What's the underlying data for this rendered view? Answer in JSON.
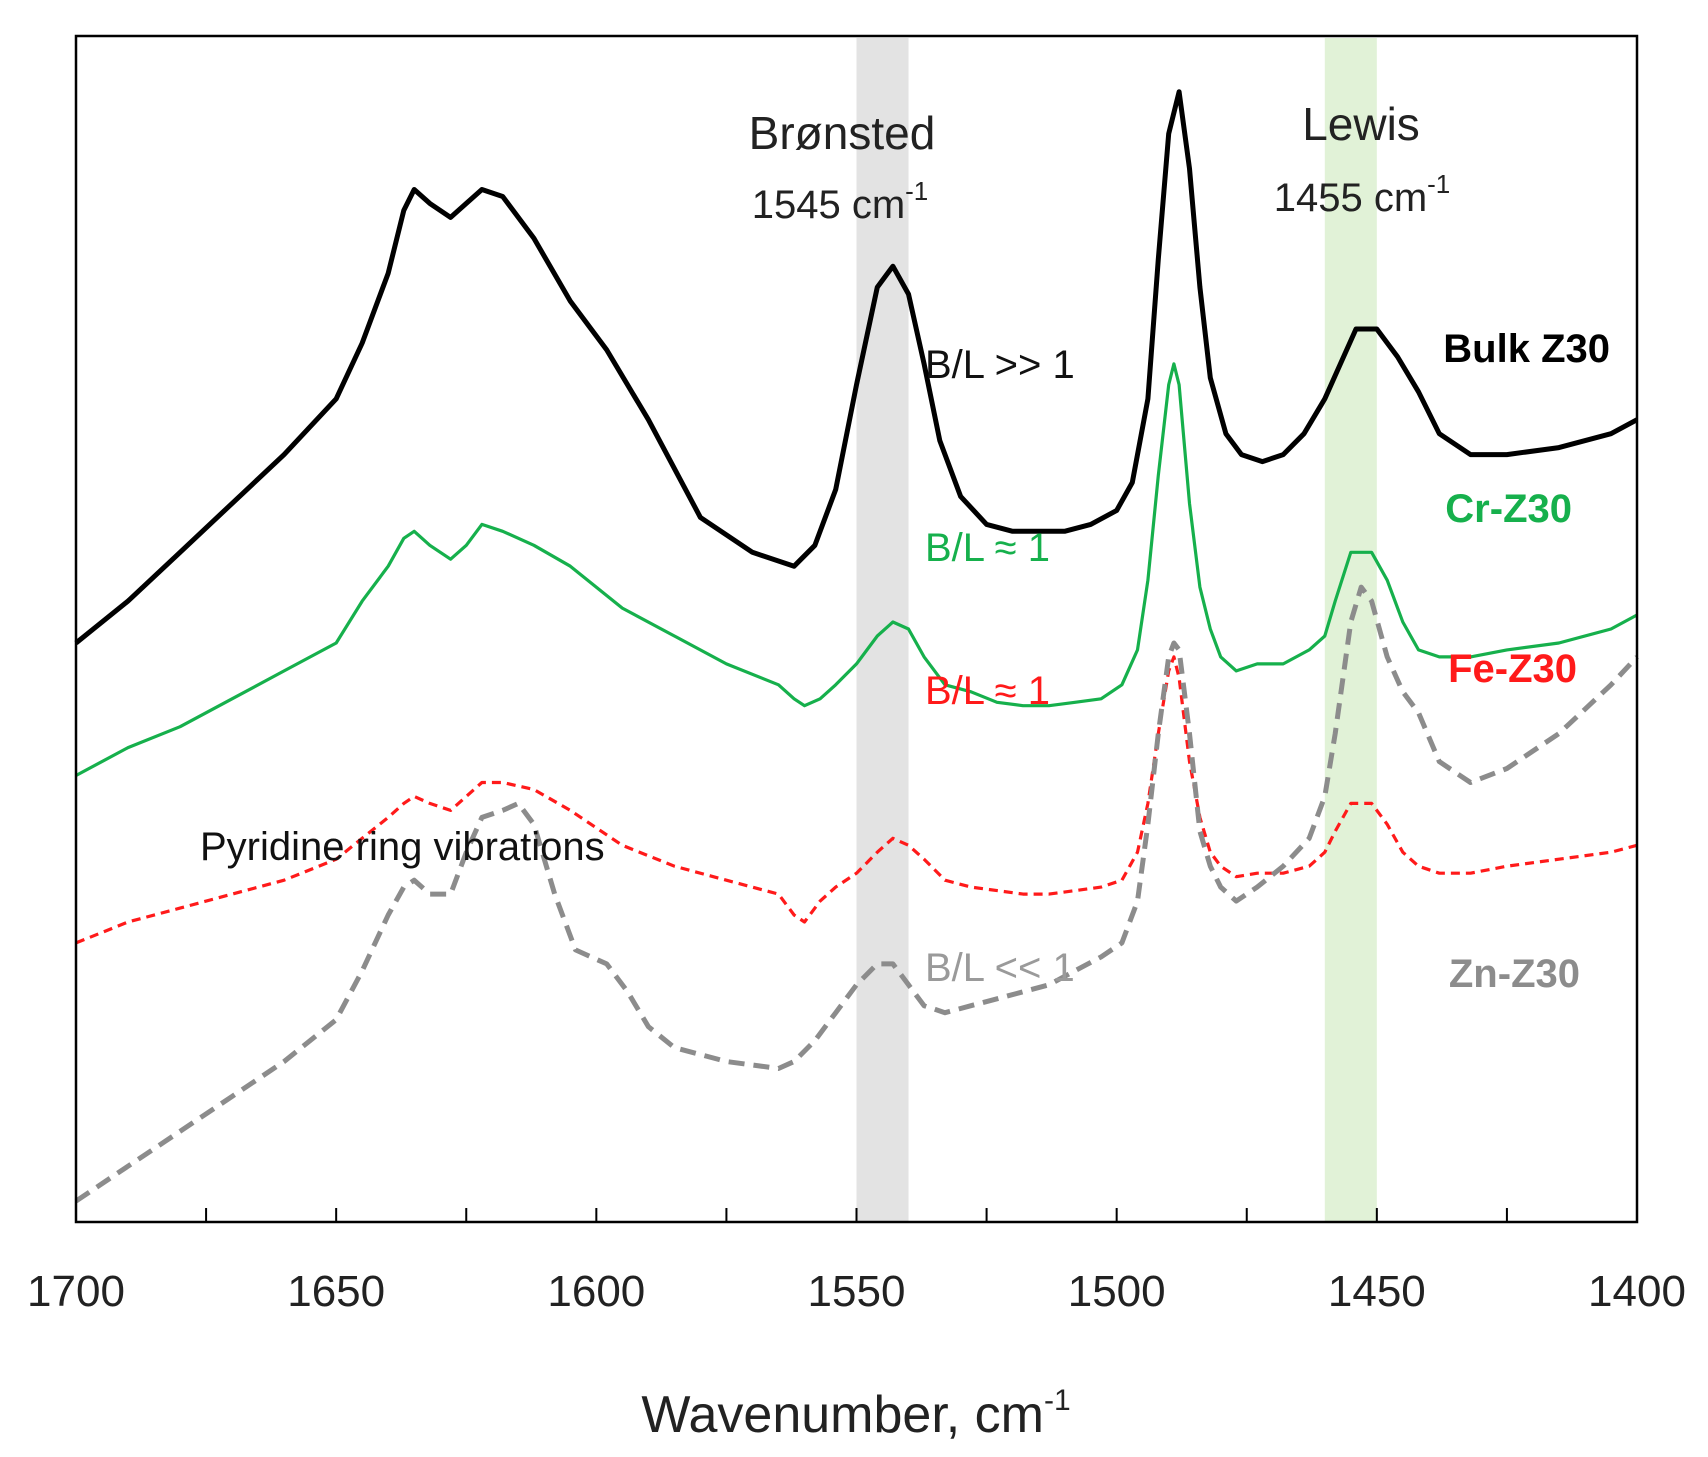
{
  "chart_data": {
    "type": "line",
    "title": "",
    "xlabel": "Wavenumber, cm",
    "xlabel_sup": "-1",
    "ylabel": "",
    "xlim": [
      1700,
      1400
    ],
    "x_reversed": true,
    "grid": false,
    "x_ticks": [
      1700,
      1650,
      1600,
      1550,
      1500,
      1450,
      1400
    ],
    "x_tick_labels": [
      "1700",
      "1650",
      "1600",
      "1550",
      "1500",
      "1450",
      "1400"
    ],
    "bands": [
      {
        "name": "Brønsted",
        "sub": "1545 cm",
        "sup": "-1",
        "from": 1550,
        "to": 1540,
        "color": "#e3e3e3"
      },
      {
        "name": "Lewis",
        "sub": "1455 cm",
        "sup": "-1",
        "from": 1460,
        "to": 1450,
        "color": "#e1f2d7"
      }
    ],
    "series": [
      {
        "name": "Bulk Z30",
        "color": "#000000",
        "style": "solid",
        "ratio_label": "B/L >> 1",
        "ratio_color": "#111111",
        "x": [
          1700,
          1690,
          1680,
          1670,
          1660,
          1650,
          1645,
          1640,
          1637,
          1635,
          1632,
          1628,
          1625,
          1622,
          1618,
          1612,
          1605,
          1598,
          1590,
          1580,
          1570,
          1562,
          1558,
          1554,
          1550,
          1546,
          1543,
          1540,
          1537,
          1534,
          1530,
          1525,
          1520,
          1515,
          1510,
          1505,
          1500,
          1497,
          1494,
          1492,
          1490,
          1488,
          1486,
          1484,
          1482,
          1479,
          1476,
          1472,
          1468,
          1464,
          1460,
          1457,
          1454,
          1450,
          1446,
          1442,
          1438,
          1432,
          1425,
          1415,
          1405,
          1400
        ],
        "y": [
          8.3,
          8.9,
          9.6,
          10.3,
          11.0,
          11.8,
          12.6,
          13.6,
          14.5,
          14.8,
          14.6,
          14.4,
          14.6,
          14.8,
          14.7,
          14.1,
          13.2,
          12.5,
          11.5,
          10.1,
          9.6,
          9.4,
          9.7,
          10.5,
          12.0,
          13.4,
          13.7,
          13.3,
          12.3,
          11.2,
          10.4,
          10.0,
          9.9,
          9.9,
          9.9,
          10.0,
          10.2,
          10.6,
          11.8,
          13.8,
          15.6,
          16.2,
          15.1,
          13.4,
          12.1,
          11.3,
          11.0,
          10.9,
          11.0,
          11.3,
          11.8,
          12.3,
          12.8,
          12.8,
          12.4,
          11.9,
          11.3,
          11.0,
          11.0,
          11.1,
          11.3,
          11.5
        ]
      },
      {
        "name": "Cr-Z30",
        "color": "#16b04c",
        "style": "solid",
        "ratio_label": "B/L ≈ 1",
        "ratio_color": "#16b04c",
        "x": [
          1700,
          1690,
          1680,
          1670,
          1660,
          1650,
          1645,
          1640,
          1637,
          1635,
          1632,
          1628,
          1625,
          1622,
          1618,
          1612,
          1605,
          1595,
          1585,
          1575,
          1565,
          1562,
          1560,
          1557,
          1554,
          1550,
          1546,
          1543,
          1540,
          1537,
          1533,
          1528,
          1523,
          1518,
          1513,
          1508,
          1503,
          1499,
          1496,
          1494,
          1492,
          1490,
          1489,
          1488,
          1486,
          1484,
          1482,
          1480,
          1477,
          1473,
          1468,
          1463,
          1460,
          1458,
          1455,
          1451,
          1448,
          1445,
          1442,
          1438,
          1432,
          1425,
          1415,
          1405,
          1400
        ],
        "y": [
          6.4,
          6.8,
          7.1,
          7.5,
          7.9,
          8.3,
          8.9,
          9.4,
          9.8,
          9.9,
          9.7,
          9.5,
          9.7,
          10.0,
          9.9,
          9.7,
          9.4,
          8.8,
          8.4,
          8.0,
          7.7,
          7.5,
          7.4,
          7.5,
          7.7,
          8.0,
          8.4,
          8.6,
          8.5,
          8.1,
          7.7,
          7.6,
          7.45,
          7.4,
          7.4,
          7.45,
          7.5,
          7.7,
          8.2,
          9.2,
          10.7,
          12.0,
          12.3,
          12.0,
          10.3,
          9.1,
          8.5,
          8.1,
          7.9,
          8.0,
          8.0,
          8.2,
          8.4,
          8.9,
          9.6,
          9.6,
          9.2,
          8.6,
          8.2,
          8.1,
          8.1,
          8.2,
          8.3,
          8.5,
          8.7
        ]
      },
      {
        "name": "Fe-Z30",
        "color": "#ff1a1a",
        "style": "dashed",
        "ratio_label": "B/L ≈ 1",
        "ratio_color": "#ff1a1a",
        "x": [
          1700,
          1690,
          1680,
          1670,
          1660,
          1650,
          1645,
          1640,
          1637,
          1635,
          1632,
          1628,
          1625,
          1622,
          1618,
          1612,
          1605,
          1595,
          1585,
          1575,
          1565,
          1562,
          1560,
          1557,
          1554,
          1550,
          1546,
          1543,
          1540,
          1537,
          1533,
          1528,
          1523,
          1518,
          1513,
          1508,
          1503,
          1499,
          1496,
          1494,
          1492,
          1490,
          1489,
          1488,
          1486,
          1484,
          1482,
          1480,
          1477,
          1473,
          1468,
          1463,
          1460,
          1458,
          1455,
          1451,
          1448,
          1445,
          1442,
          1438,
          1432,
          1425,
          1415,
          1405,
          1400
        ],
        "y": [
          4.0,
          4.3,
          4.5,
          4.7,
          4.9,
          5.2,
          5.5,
          5.8,
          6.0,
          6.1,
          6.0,
          5.9,
          6.1,
          6.3,
          6.3,
          6.2,
          5.9,
          5.4,
          5.1,
          4.9,
          4.7,
          4.4,
          4.3,
          4.6,
          4.8,
          5.0,
          5.3,
          5.5,
          5.4,
          5.2,
          4.9,
          4.8,
          4.75,
          4.7,
          4.7,
          4.75,
          4.8,
          4.9,
          5.3,
          6.0,
          7.0,
          7.9,
          8.1,
          7.8,
          6.6,
          5.8,
          5.3,
          5.1,
          4.95,
          5.0,
          5.0,
          5.1,
          5.3,
          5.6,
          6.0,
          6.0,
          5.7,
          5.3,
          5.1,
          5.0,
          5.0,
          5.1,
          5.2,
          5.3,
          5.4
        ]
      },
      {
        "name": "Zn-Z30",
        "color": "#8c8c8c",
        "style": "dashed",
        "ratio_label": "B/L << 1",
        "ratio_color": "#9a9a9a",
        "x": [
          1700,
          1690,
          1680,
          1670,
          1660,
          1650,
          1645,
          1640,
          1637,
          1635,
          1632,
          1628,
          1625,
          1622,
          1618,
          1615,
          1612,
          1608,
          1604,
          1598,
          1594,
          1590,
          1585,
          1575,
          1565,
          1562,
          1558,
          1554,
          1550,
          1546,
          1543,
          1540,
          1537,
          1533,
          1528,
          1523,
          1518,
          1513,
          1508,
          1503,
          1499,
          1496,
          1494,
          1492,
          1490,
          1489,
          1488,
          1486,
          1484,
          1482,
          1480,
          1477,
          1473,
          1468,
          1463,
          1460,
          1458,
          1455,
          1453,
          1451,
          1448,
          1445,
          1442,
          1438,
          1432,
          1425,
          1415,
          1405,
          1400
        ],
        "y": [
          0.3,
          0.8,
          1.3,
          1.8,
          2.3,
          2.9,
          3.6,
          4.4,
          4.8,
          4.9,
          4.7,
          4.7,
          5.3,
          5.8,
          5.9,
          6.0,
          5.7,
          4.7,
          3.9,
          3.7,
          3.3,
          2.8,
          2.5,
          2.3,
          2.2,
          2.3,
          2.6,
          3.0,
          3.4,
          3.7,
          3.7,
          3.4,
          3.1,
          3.0,
          3.1,
          3.2,
          3.3,
          3.4,
          3.6,
          3.8,
          4.0,
          4.6,
          5.7,
          7.0,
          8.1,
          8.3,
          8.2,
          7.0,
          5.6,
          5.1,
          4.8,
          4.6,
          4.8,
          5.1,
          5.5,
          6.1,
          7.0,
          8.6,
          9.1,
          8.9,
          8.1,
          7.6,
          7.3,
          6.6,
          6.3,
          6.5,
          7.0,
          7.7,
          8.1
        ]
      }
    ],
    "annotations": [
      "Pyridine ring vibrations"
    ]
  }
}
